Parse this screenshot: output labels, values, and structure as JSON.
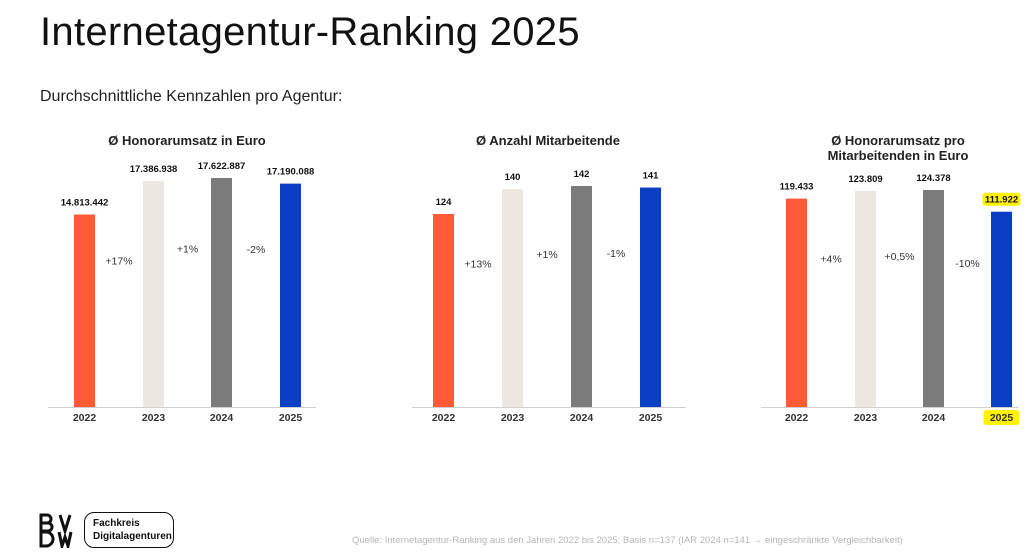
{
  "header": {
    "title": "Internetagentur-Ranking 2025",
    "subtitle": "Durchschnittliche Kennzahlen pro Agentur:"
  },
  "colors": {
    "y2022": "#ff5a36",
    "y2023": "#ece8e1",
    "y2024": "#7b7b7b",
    "y2025": "#0a3fc4",
    "highlight": "#fff200"
  },
  "chart_data": [
    {
      "type": "bar",
      "title": "Ø Honorarumsatz in Euro",
      "categories": [
        "2022",
        "2023",
        "2024",
        "2025"
      ],
      "values": [
        14813442,
        17386938,
        17622887,
        17190088
      ],
      "value_labels": [
        "14.813.442",
        "17.386.938",
        "17.622.887",
        "17.190.088"
      ],
      "changes": [
        "+17%",
        "+1%",
        "-2%"
      ],
      "ylim": [
        0,
        17622887
      ],
      "highlight_last": false
    },
    {
      "type": "bar",
      "title": "Ø Anzahl Mitarbeitende",
      "categories": [
        "2022",
        "2023",
        "2024",
        "2025"
      ],
      "values": [
        124,
        140,
        142,
        141
      ],
      "value_labels": [
        "124",
        "140",
        "142",
        "141"
      ],
      "changes": [
        "+13%",
        "+1%",
        "-1%"
      ],
      "ylim": [
        0,
        142
      ],
      "highlight_last": false
    },
    {
      "type": "bar",
      "title": "Ø Honorarumsatz pro Mitarbeitenden in Euro",
      "title_lines": [
        "Ø Honorarumsatz pro",
        "Mitarbeitenden in Euro"
      ],
      "categories": [
        "2022",
        "2023",
        "2024",
        "2025"
      ],
      "values": [
        119433,
        123809,
        124378,
        111922
      ],
      "value_labels": [
        "119.433",
        "123.809",
        "124.378",
        "111.922"
      ],
      "changes": [
        "+4%",
        "+0,5%",
        "-10%"
      ],
      "ylim": [
        0,
        124378
      ],
      "highlight_last": true
    }
  ],
  "footer": {
    "logo_text": "BVDW",
    "badge_line1": "Fachkreis",
    "badge_line2": "Digitalagenturen",
    "source": "Quelle: Internetagentur-Ranking aus den Jahren 2022 bis 2025; Basis n=137 (IAR 2024 n=141 → eingeschränkte Vergleichbarkeit)"
  }
}
